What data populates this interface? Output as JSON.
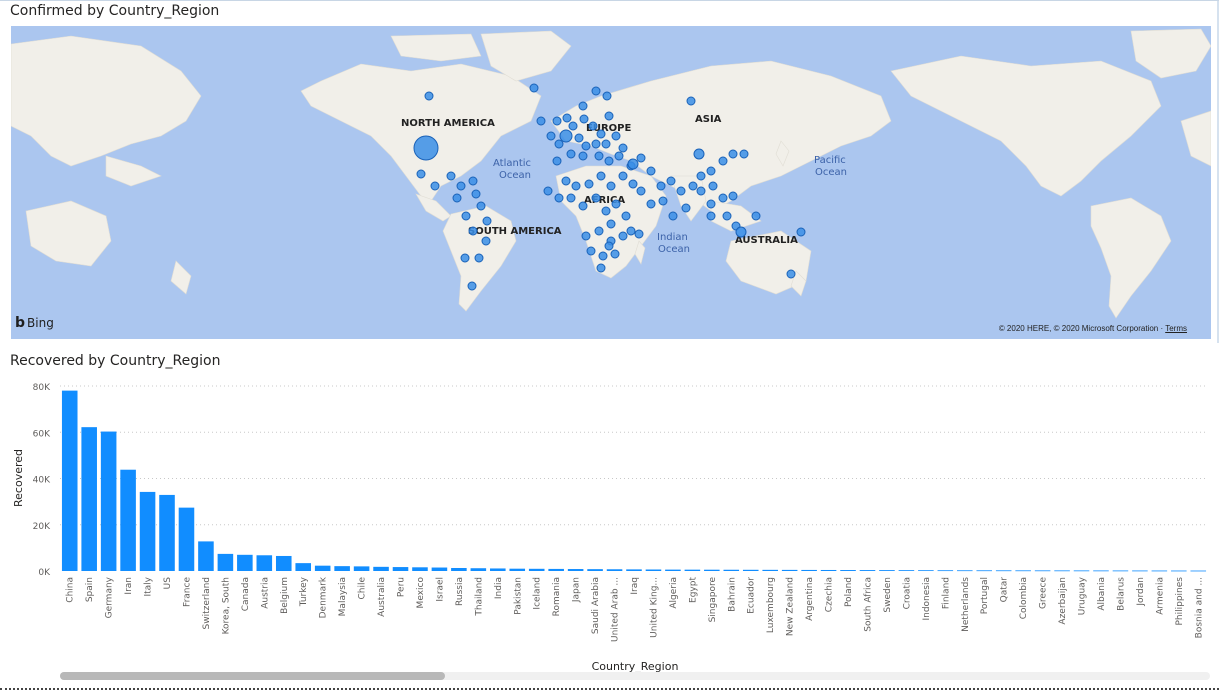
{
  "map_visual": {
    "title": "Confirmed by Country_Region",
    "provider": "Bing",
    "attribution": "© 2020 HERE, © 2020 Microsoft Corporation",
    "terms_link": "Terms",
    "labels": {
      "north_america": "NORTH AMERICA",
      "south_america": "SOUTH AMERICA",
      "europe": "EUROPE",
      "asia": "ASIA",
      "africa": "AFRICA",
      "australia": "AUSTRALIA",
      "atlantic_1": "Atlantic",
      "atlantic_2": "Ocean",
      "pacific_1": "Pacific",
      "pacific_2": "Ocean",
      "indian_1": "Indian",
      "indian_2": "Ocean"
    },
    "colors": {
      "water": "#abc6ef",
      "land": "#f1efe9",
      "bubble_fill": "#3a8ee6",
      "bubble_stroke": "#1a62b8"
    }
  },
  "bar_visual": {
    "title": "Recovered by Country_Region"
  },
  "chart_data": {
    "type": "bar",
    "title": "Recovered by Country_Region",
    "xlabel": "Country_Region",
    "ylabel": "Recovered",
    "ylim": [
      0,
      80000
    ],
    "yticks": [
      {
        "value": 0,
        "label": "0K"
      },
      {
        "value": 20000,
        "label": "20K"
      },
      {
        "value": 40000,
        "label": "40K"
      },
      {
        "value": 60000,
        "label": "60K"
      },
      {
        "value": 80000,
        "label": "80K"
      }
    ],
    "grid": true,
    "color": "#118dff",
    "categories": [
      "China",
      "Spain",
      "Germany",
      "Iran",
      "Italy",
      "US",
      "France",
      "Switzerland",
      "Korea, South",
      "Canada",
      "Austria",
      "Belgium",
      "Turkey",
      "Denmark",
      "Malaysia",
      "Chile",
      "Australia",
      "Peru",
      "Mexico",
      "Israel",
      "Russia",
      "Thailand",
      "India",
      "Pakistan",
      "Iceland",
      "Romania",
      "Japan",
      "Saudi Arabia",
      "United Arab ...",
      "Iraq",
      "United King...",
      "Algeria",
      "Egypt",
      "Singapore",
      "Bahrain",
      "Ecuador",
      "Luxembourg",
      "New Zealand",
      "Argentina",
      "Czechia",
      "Poland",
      "South Africa",
      "Sweden",
      "Croatia",
      "Indonesia",
      "Finland",
      "Netherlands",
      "Portugal",
      "Qatar",
      "Colombia",
      "Greece",
      "Azerbaijan",
      "Uruguay",
      "Albania",
      "Belarus",
      "Jordan",
      "Armenia",
      "Philippines",
      "Bosnia and ..."
    ],
    "values": [
      78000,
      62200,
      60300,
      43800,
      34200,
      32900,
      27400,
      12800,
      7400,
      7000,
      6800,
      6500,
      3400,
      2300,
      2100,
      2000,
      1800,
      1700,
      1600,
      1500,
      1300,
      1200,
      1100,
      1000,
      950,
      900,
      850,
      800,
      750,
      700,
      650,
      600,
      580,
      560,
      540,
      520,
      500,
      480,
      460,
      440,
      420,
      400,
      380,
      360,
      340,
      320,
      300,
      290,
      280,
      270,
      260,
      250,
      240,
      230,
      220,
      210,
      200,
      190,
      180
    ]
  }
}
